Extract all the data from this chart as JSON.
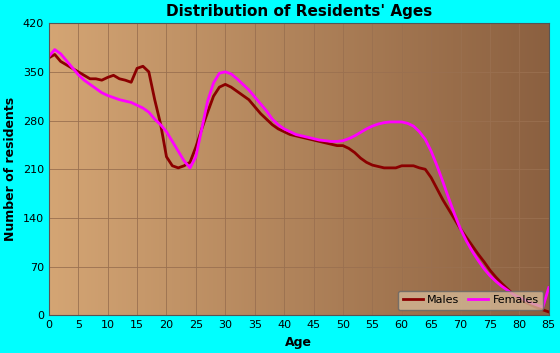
{
  "title": "Distribution of Residents' Ages",
  "xlabel": "Age",
  "ylabel": "Number of residents",
  "background_outer": "#00FFFF",
  "background_inner_left": "#D4A574",
  "background_inner_right": "#8B6040",
  "grid_color": "#9A7050",
  "ylim": [
    0,
    420
  ],
  "xlim": [
    0,
    85
  ],
  "yticks": [
    0,
    70,
    140,
    210,
    280,
    350,
    420
  ],
  "xticks": [
    0,
    5,
    10,
    15,
    20,
    25,
    30,
    35,
    40,
    45,
    50,
    55,
    60,
    65,
    70,
    75,
    80,
    85
  ],
  "males_color": "#8B0000",
  "females_color": "#FF00FF",
  "males_ages": [
    0,
    1,
    2,
    3,
    4,
    5,
    6,
    7,
    8,
    9,
    10,
    11,
    12,
    13,
    14,
    15,
    16,
    17,
    18,
    19,
    20,
    21,
    22,
    23,
    24,
    25,
    26,
    27,
    28,
    29,
    30,
    31,
    32,
    33,
    34,
    35,
    36,
    37,
    38,
    39,
    40,
    41,
    42,
    43,
    44,
    45,
    46,
    47,
    48,
    49,
    50,
    51,
    52,
    53,
    54,
    55,
    56,
    57,
    58,
    59,
    60,
    61,
    62,
    63,
    64,
    65,
    66,
    67,
    68,
    69,
    70,
    71,
    72,
    73,
    74,
    75,
    76,
    77,
    78,
    79,
    80,
    81,
    82,
    83,
    84,
    85
  ],
  "males_values": [
    370,
    375,
    365,
    360,
    355,
    350,
    345,
    340,
    340,
    338,
    342,
    345,
    340,
    338,
    335,
    355,
    358,
    350,
    310,
    275,
    228,
    215,
    212,
    215,
    220,
    242,
    268,
    292,
    315,
    328,
    332,
    328,
    322,
    316,
    310,
    300,
    290,
    282,
    274,
    268,
    264,
    260,
    258,
    256,
    254,
    252,
    250,
    248,
    246,
    244,
    244,
    240,
    234,
    226,
    220,
    216,
    214,
    212,
    212,
    212,
    215,
    215,
    215,
    212,
    210,
    198,
    182,
    166,
    152,
    138,
    124,
    112,
    100,
    88,
    77,
    65,
    55,
    46,
    38,
    30,
    24,
    19,
    15,
    11,
    8,
    5
  ],
  "females_ages": [
    0,
    1,
    2,
    3,
    4,
    5,
    6,
    7,
    8,
    9,
    10,
    11,
    12,
    13,
    14,
    15,
    16,
    17,
    18,
    19,
    20,
    21,
    22,
    23,
    24,
    25,
    26,
    27,
    28,
    29,
    30,
    31,
    32,
    33,
    34,
    35,
    36,
    37,
    38,
    39,
    40,
    41,
    42,
    43,
    44,
    45,
    46,
    47,
    48,
    49,
    50,
    51,
    52,
    53,
    54,
    55,
    56,
    57,
    58,
    59,
    60,
    61,
    62,
    63,
    64,
    65,
    66,
    67,
    68,
    69,
    70,
    71,
    72,
    73,
    74,
    75,
    76,
    77,
    78,
    79,
    80,
    81,
    82,
    83,
    84,
    85
  ],
  "females_values": [
    372,
    382,
    376,
    366,
    356,
    346,
    338,
    332,
    326,
    320,
    316,
    313,
    310,
    308,
    306,
    302,
    298,
    292,
    282,
    274,
    264,
    250,
    236,
    222,
    212,
    228,
    268,
    308,
    334,
    348,
    350,
    347,
    340,
    332,
    324,
    314,
    304,
    294,
    282,
    274,
    268,
    264,
    260,
    258,
    256,
    254,
    252,
    251,
    250,
    250,
    251,
    254,
    258,
    263,
    268,
    272,
    275,
    277,
    278,
    278,
    278,
    276,
    272,
    264,
    253,
    236,
    215,
    192,
    168,
    145,
    124,
    107,
    92,
    79,
    67,
    57,
    49,
    42,
    36,
    30,
    26,
    22,
    18,
    15,
    12,
    40
  ],
  "line_width": 2.0,
  "legend_facecolor": "#D4B896",
  "legend_edgecolor": "#666666",
  "title_fontsize": 11,
  "label_fontsize": 9,
  "tick_fontsize": 8
}
